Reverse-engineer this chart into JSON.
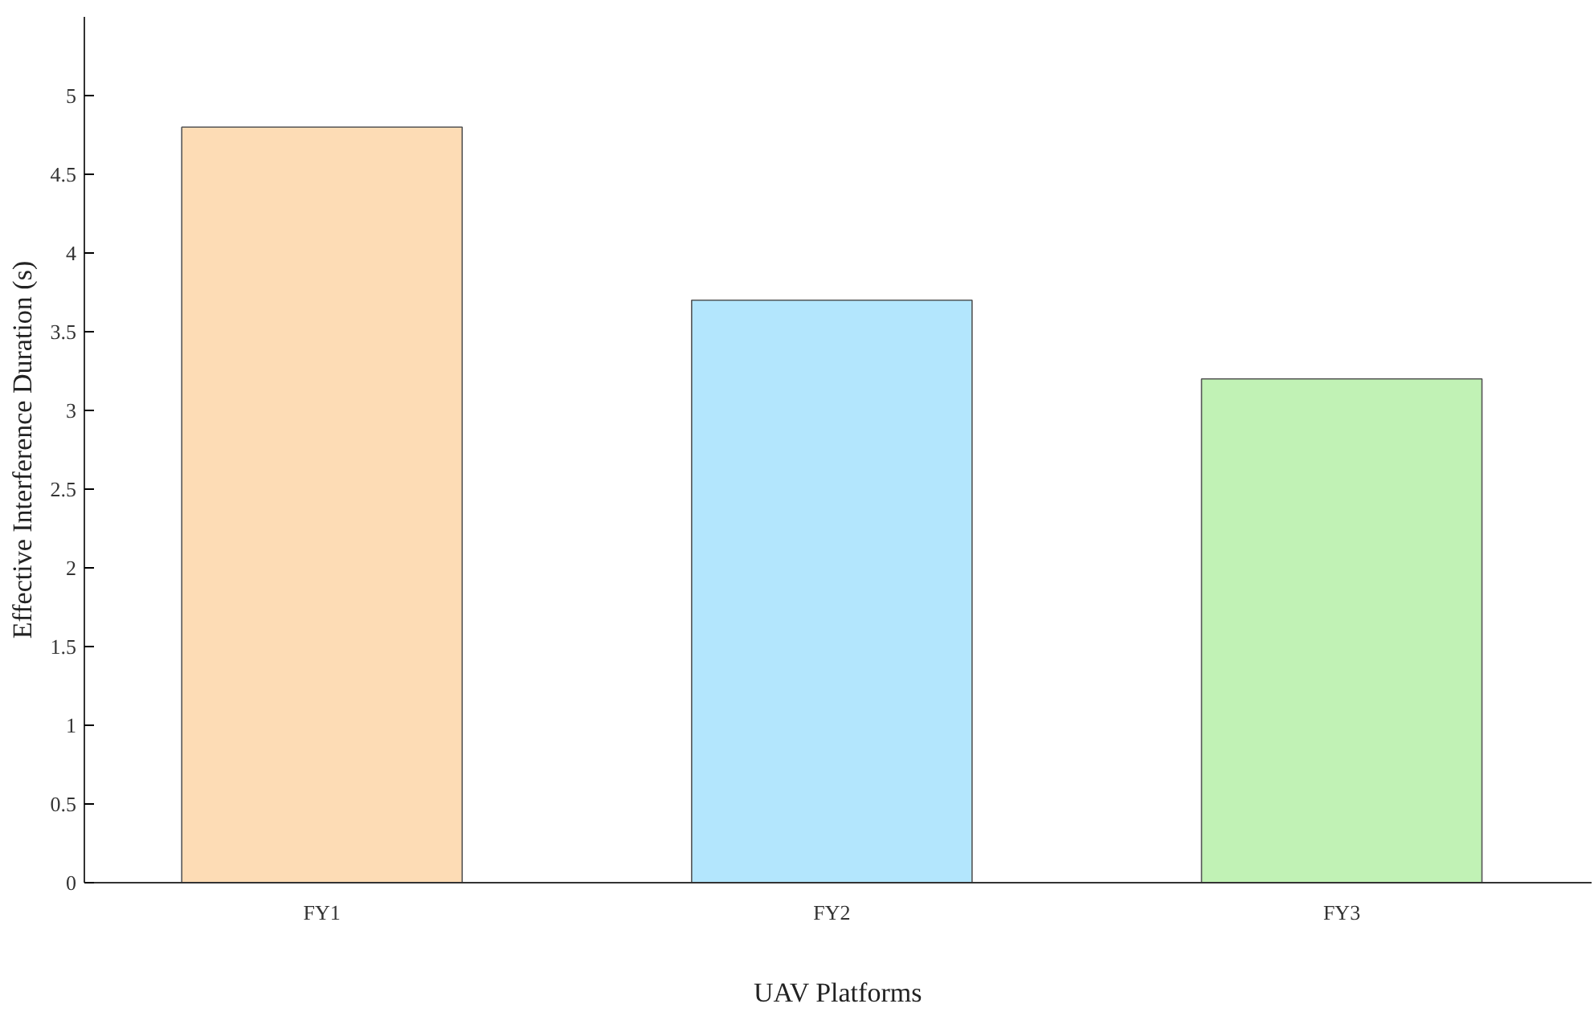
{
  "chart_data": {
    "type": "bar",
    "categories": [
      "FY1",
      "FY2",
      "FY3"
    ],
    "values": [
      4.8,
      3.7,
      3.2
    ],
    "colors": [
      "#fddcb5",
      "#b3e6fd",
      "#c1f2b5"
    ],
    "xlabel": "UAV Platforms",
    "ylabel": "Effective Interference Duration (s)",
    "ylim": [
      0,
      5.5
    ],
    "yticks": [
      0,
      0.5,
      1,
      1.5,
      2,
      2.5,
      3,
      3.5,
      4,
      4.5,
      5
    ],
    "grid": false
  }
}
